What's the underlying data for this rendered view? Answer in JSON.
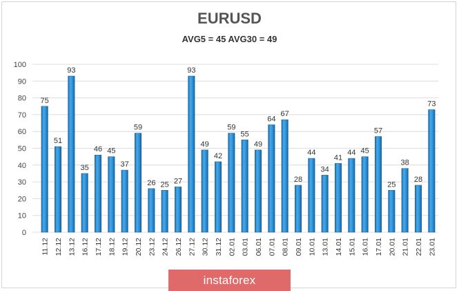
{
  "chart_data": {
    "type": "bar",
    "title": "EURUSD",
    "subtitle": "AVG5 = 45 AVG30 = 49",
    "categories": [
      "11.12",
      "12.12",
      "13.12",
      "16.12",
      "17.12",
      "18.12",
      "19.12",
      "20.12",
      "23.12",
      "24.12",
      "26.12",
      "27.12",
      "30.12",
      "31.12",
      "02.01",
      "03.01",
      "06.01",
      "07.01",
      "08.01",
      "09.01",
      "10.01",
      "13.01",
      "14.01",
      "15.01",
      "16.01",
      "17.01",
      "20.01",
      "21.01",
      "22.01",
      "23.01"
    ],
    "values": [
      75,
      51,
      93,
      35,
      46,
      45,
      37,
      59,
      26,
      25,
      27,
      93,
      49,
      42,
      59,
      55,
      49,
      64,
      67,
      28,
      44,
      34,
      41,
      44,
      45,
      57,
      25,
      38,
      28,
      73
    ],
    "yticks": [
      0,
      10,
      20,
      30,
      40,
      50,
      60,
      70,
      80,
      90,
      100
    ],
    "ylim": [
      0,
      100
    ],
    "grid": true,
    "legend": "none",
    "bar_color": "#2a8fd4"
  },
  "watermark": "instaforex"
}
